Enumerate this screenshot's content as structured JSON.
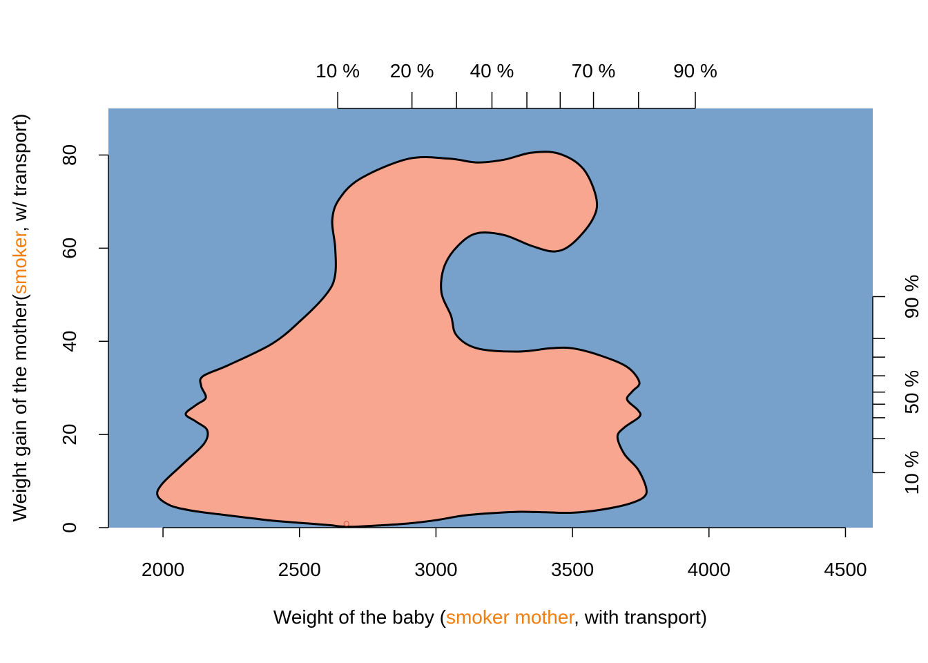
{
  "chart_data": {
    "type": "area",
    "description_type": "bivariate-density-contour",
    "x_axis": {
      "label_parts": [
        {
          "text": "Weight of the baby (",
          "highlight": false
        },
        {
          "text": "smoker mother",
          "highlight": true
        },
        {
          "text": ", with transport)",
          "highlight": false
        }
      ],
      "ticks": [
        2000,
        2500,
        3000,
        3500,
        4000,
        4500
      ],
      "range": [
        1800,
        4600
      ]
    },
    "y_axis": {
      "label_parts": [
        {
          "text": "Weight gain of the mother(",
          "highlight": false
        },
        {
          "text": "smoker",
          "highlight": true
        },
        {
          "text": ", w/ transport)",
          "highlight": false
        }
      ],
      "ticks": [
        0,
        20,
        40,
        60,
        80
      ],
      "range": [
        0,
        90
      ]
    },
    "top_quantile_axis": {
      "labels": [
        "10 %",
        "20 %",
        "40 %",
        "70 %",
        "90 %"
      ],
      "label_positions": [
        2640,
        2912,
        3205,
        3577,
        3950
      ],
      "tick_positions": [
        2640,
        2912,
        3075,
        3205,
        3333,
        3455,
        3577,
        3742,
        3950
      ]
    },
    "right_quantile_axis": {
      "labels": [
        "10 %",
        "50 %",
        "90 %"
      ],
      "label_positions": [
        11.8,
        29.1,
        49.6
      ],
      "tick_positions": [
        11.8,
        19.1,
        23.6,
        26.5,
        29.1,
        32.6,
        36.6,
        40.6,
        49.6
      ]
    },
    "region": {
      "name": "",
      "color": "#F9A690",
      "outline": [
        [
          2643,
          0.3
        ],
        [
          2617,
          0.5
        ],
        [
          2530,
          0.9
        ],
        [
          2400,
          1.5
        ],
        [
          2300,
          2.2
        ],
        [
          2200,
          2.9
        ],
        [
          2100,
          3.7
        ],
        [
          2025,
          4.8
        ],
        [
          1980,
          6.9
        ],
        [
          1997,
          9.4
        ],
        [
          2070,
          13.5
        ],
        [
          2150,
          18.0
        ],
        [
          2162,
          20.9
        ],
        [
          2120,
          22.8
        ],
        [
          2083,
          24.4
        ],
        [
          2123,
          26.4
        ],
        [
          2157,
          27.9
        ],
        [
          2140,
          30.4
        ],
        [
          2146,
          32.5
        ],
        [
          2240,
          34.9
        ],
        [
          2400,
          39.5
        ],
        [
          2505,
          44.5
        ],
        [
          2598,
          50.1
        ],
        [
          2630,
          54.0
        ],
        [
          2631,
          60.0
        ],
        [
          2620,
          66.0
        ],
        [
          2645,
          70.5
        ],
        [
          2725,
          75.0
        ],
        [
          2900,
          79.2
        ],
        [
          3050,
          79.2
        ],
        [
          3150,
          78.4
        ],
        [
          3250,
          79.0
        ],
        [
          3350,
          80.5
        ],
        [
          3450,
          80.3
        ],
        [
          3540,
          77.0
        ],
        [
          3588,
          70.5
        ],
        [
          3572,
          66.0
        ],
        [
          3500,
          61.0
        ],
        [
          3435,
          59.3
        ],
        [
          3350,
          60.5
        ],
        [
          3250,
          62.8
        ],
        [
          3150,
          63.2
        ],
        [
          3080,
          60.5
        ],
        [
          3030,
          56.0
        ],
        [
          3020,
          50.5
        ],
        [
          3055,
          45.5
        ],
        [
          3075,
          41.3
        ],
        [
          3150,
          38.5
        ],
        [
          3300,
          37.8
        ],
        [
          3420,
          38.5
        ],
        [
          3500,
          38.5
        ],
        [
          3600,
          37.0
        ],
        [
          3700,
          34.5
        ],
        [
          3745,
          31.2
        ],
        [
          3720,
          29.3
        ],
        [
          3700,
          27.5
        ],
        [
          3740,
          25.2
        ],
        [
          3745,
          23.8
        ],
        [
          3690,
          21.5
        ],
        [
          3665,
          19.5
        ],
        [
          3690,
          15.8
        ],
        [
          3740,
          12.5
        ],
        [
          3770,
          8.5
        ],
        [
          3760,
          6.5
        ],
        [
          3700,
          5.0
        ],
        [
          3600,
          3.8
        ],
        [
          3500,
          3.2
        ],
        [
          3400,
          3.3
        ],
        [
          3300,
          3.4
        ],
        [
          3200,
          3.1
        ],
        [
          3100,
          2.6
        ],
        [
          3000,
          1.6
        ],
        [
          2900,
          0.9
        ],
        [
          2800,
          0.5
        ],
        [
          2700,
          0.2
        ]
      ]
    },
    "point": {
      "x": 2672,
      "y": 0.4
    },
    "colors": {
      "panel": "#77A1CB",
      "region_fill": "#F9A690",
      "highlight_text": "#F07F12",
      "axis": "#000000"
    }
  }
}
